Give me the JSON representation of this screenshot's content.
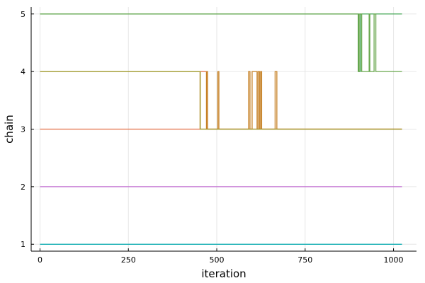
{
  "chart_data": {
    "type": "line",
    "title": "",
    "xlabel": "iteration",
    "ylabel": "chain",
    "xlim": [
      -25,
      1065
    ],
    "ylim": [
      0.88,
      5.12
    ],
    "x_ticks": [
      0,
      250,
      500,
      750,
      1000
    ],
    "y_ticks": [
      1,
      2,
      3,
      4,
      5
    ],
    "grid": true,
    "legend": "none",
    "x_max": 1024,
    "series": [
      {
        "color": "#00a9ad",
        "points": [
          [
            0,
            1
          ],
          [
            1024,
            1
          ]
        ]
      },
      {
        "color": "#c271d2",
        "points": [
          [
            0,
            2
          ],
          [
            1024,
            2
          ]
        ]
      },
      {
        "color": "#e26f46",
        "points": [
          [
            0,
            3
          ],
          [
            453,
            3
          ],
          [
            453,
            4
          ],
          [
            471,
            4
          ],
          [
            471,
            3
          ],
          [
            1024,
            3
          ]
        ]
      },
      {
        "color": "#3da44d",
        "points": [
          [
            0,
            5
          ],
          [
            902,
            5
          ],
          [
            902,
            4
          ],
          [
            906,
            4
          ],
          [
            906,
            5
          ],
          [
            1024,
            5
          ]
        ]
      },
      {
        "color": "#c68125",
        "points": [
          [
            0,
            4
          ],
          [
            453,
            4
          ],
          [
            453,
            3
          ],
          [
            471,
            3
          ],
          [
            471,
            4
          ],
          [
            474,
            4
          ],
          [
            474,
            3
          ],
          [
            503,
            3
          ],
          [
            503,
            4
          ],
          [
            506,
            4
          ],
          [
            506,
            3
          ],
          [
            590,
            3
          ],
          [
            590,
            4
          ],
          [
            594,
            4
          ],
          [
            594,
            3
          ],
          [
            600,
            3
          ],
          [
            600,
            4
          ],
          [
            614,
            4
          ],
          [
            614,
            3
          ],
          [
            617,
            3
          ],
          [
            617,
            4
          ],
          [
            621,
            4
          ],
          [
            621,
            3
          ],
          [
            624,
            3
          ],
          [
            624,
            4
          ],
          [
            627,
            4
          ],
          [
            627,
            3
          ],
          [
            665,
            3
          ],
          [
            665,
            4
          ],
          [
            670,
            4
          ],
          [
            670,
            3
          ],
          [
            1024,
            3
          ]
        ]
      },
      {
        "color": "#9c9c2c",
        "points": [
          [
            0,
            4
          ],
          [
            453,
            4
          ],
          [
            453,
            3
          ],
          [
            1024,
            3
          ]
        ]
      },
      {
        "color": "#6aa84f",
        "points": [
          [
            0,
            5
          ],
          [
            900,
            5
          ],
          [
            900,
            4
          ],
          [
            903,
            4
          ],
          [
            903,
            5
          ],
          [
            910,
            5
          ],
          [
            910,
            4
          ],
          [
            931,
            4
          ],
          [
            931,
            5
          ],
          [
            933,
            5
          ],
          [
            933,
            4
          ],
          [
            945,
            4
          ],
          [
            945,
            5
          ],
          [
            950,
            5
          ],
          [
            950,
            4
          ],
          [
            1024,
            4
          ]
        ]
      }
    ]
  }
}
